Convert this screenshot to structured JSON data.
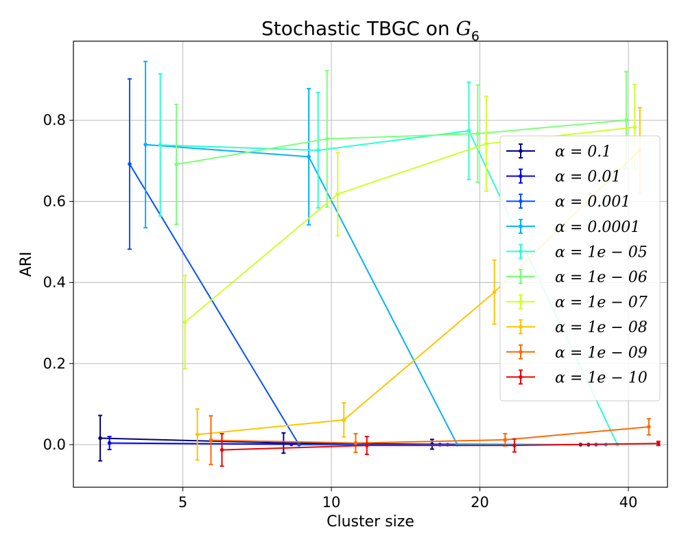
{
  "chart_data": {
    "type": "line",
    "title": "Stochastic TBGC on ",
    "title_math": "G",
    "title_sub": "6",
    "xlabel": "Cluster size",
    "ylabel": "ARI",
    "xscale": "log",
    "xlim": [
      3.0,
      48.0
    ],
    "ylim": [
      -0.105,
      0.995
    ],
    "xticks": [
      5,
      10,
      20,
      40
    ],
    "xtick_labels": [
      "5",
      "10",
      "20",
      "40"
    ],
    "yticks": [
      0.0,
      0.2,
      0.4,
      0.6,
      0.8
    ],
    "ytick_labels": [
      "0.0",
      "0.2",
      "0.4",
      "0.6",
      "0.8"
    ],
    "grid": true,
    "legend_position": "right",
    "error_bars": true,
    "series": [
      {
        "name": "α = 0.1",
        "color": "#00007f",
        "x": [
          3.4,
          8.0,
          16.0,
          32.0
        ],
        "y": [
          0.016,
          0.004,
          0.001,
          0.0
        ],
        "err": [
          0.056,
          0.025,
          0.012,
          0.0
        ]
      },
      {
        "name": "α = 0.01",
        "color": "#0000ff",
        "x": [
          3.55,
          8.3,
          16.6,
          33.2
        ],
        "y": [
          0.004,
          0.001,
          0.0,
          0.0
        ],
        "err": [
          0.016,
          0.0,
          0.0,
          0.0
        ]
      },
      {
        "name": "α = 0.001",
        "color": "#0050ff",
        "x": [
          3.9,
          8.6,
          17.2,
          34.4
        ],
        "y": [
          0.692,
          0.0,
          0.0,
          0.0
        ],
        "err": [
          0.21,
          0.0,
          0.0,
          0.0
        ]
      },
      {
        "name": "α = 0.0001",
        "color": "#00b0ff",
        "x": [
          4.2,
          9.0,
          18.0,
          36.0
        ],
        "y": [
          0.74,
          0.71,
          0.0,
          0.0
        ],
        "err": [
          0.205,
          0.168,
          0.0,
          0.0
        ]
      },
      {
        "name": "α = 1e − 05",
        "color": "#29ffce",
        "x": [
          4.5,
          9.4,
          19.0,
          38.0
        ],
        "y": [
          0.739,
          0.726,
          0.774,
          0.0
        ],
        "err": [
          0.175,
          0.142,
          0.12,
          0.0
        ]
      },
      {
        "name": "α = 1e − 06",
        "color": "#7dff7a",
        "x": [
          4.85,
          9.8,
          19.8,
          39.6
        ],
        "y": [
          0.691,
          0.754,
          0.767,
          0.8
        ],
        "err": [
          0.148,
          0.168,
          0.12,
          0.12
        ]
      },
      {
        "name": "α = 1e − 07",
        "color": "#ceff29",
        "x": [
          5.05,
          10.3,
          20.6,
          41.2
        ],
        "y": [
          0.302,
          0.618,
          0.742,
          0.783
        ],
        "err": [
          0.115,
          0.103,
          0.117,
          0.105
        ]
      },
      {
        "name": "α = 1e − 08",
        "color": "#ffc400",
        "x": [
          5.35,
          10.6,
          21.4,
          42.2
        ],
        "y": [
          0.025,
          0.061,
          0.376,
          0.727
        ],
        "err": [
          0.063,
          0.042,
          0.079,
          0.104
        ]
      },
      {
        "name": "α = 1e − 09",
        "color": "#ff6800",
        "x": [
          5.7,
          11.2,
          22.5,
          44.0
        ],
        "y": [
          0.011,
          0.004,
          0.012,
          0.044
        ],
        "err": [
          0.06,
          0.023,
          0.015,
          0.02
        ]
      },
      {
        "name": "α = 1e − 10",
        "color": "#ee0000",
        "x": [
          6.0,
          11.8,
          23.5,
          46.0
        ],
        "y": [
          -0.013,
          -0.002,
          -0.002,
          0.003
        ],
        "err": [
          0.04,
          0.022,
          0.016,
          0.005
        ]
      }
    ]
  }
}
